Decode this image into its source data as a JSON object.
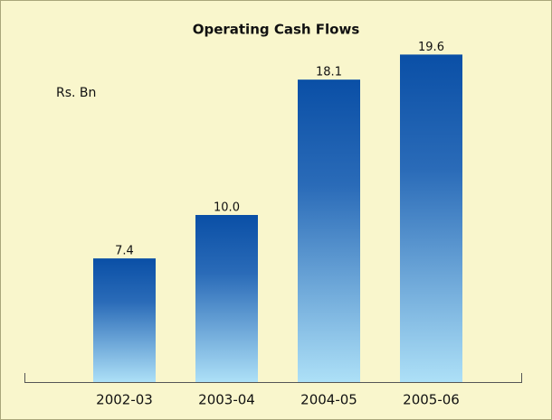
{
  "chart_data": {
    "type": "bar",
    "title": "Operating Cash Flows",
    "unit_label": "Rs. Bn",
    "categories": [
      "2002-03",
      "2003-04",
      "2004-05",
      "2005-06"
    ],
    "values": [
      7.4,
      10.0,
      18.1,
      19.6
    ],
    "value_labels": [
      "7.4",
      "10.0",
      "18.1",
      "19.6"
    ],
    "color": "#0a4fa6"
  }
}
